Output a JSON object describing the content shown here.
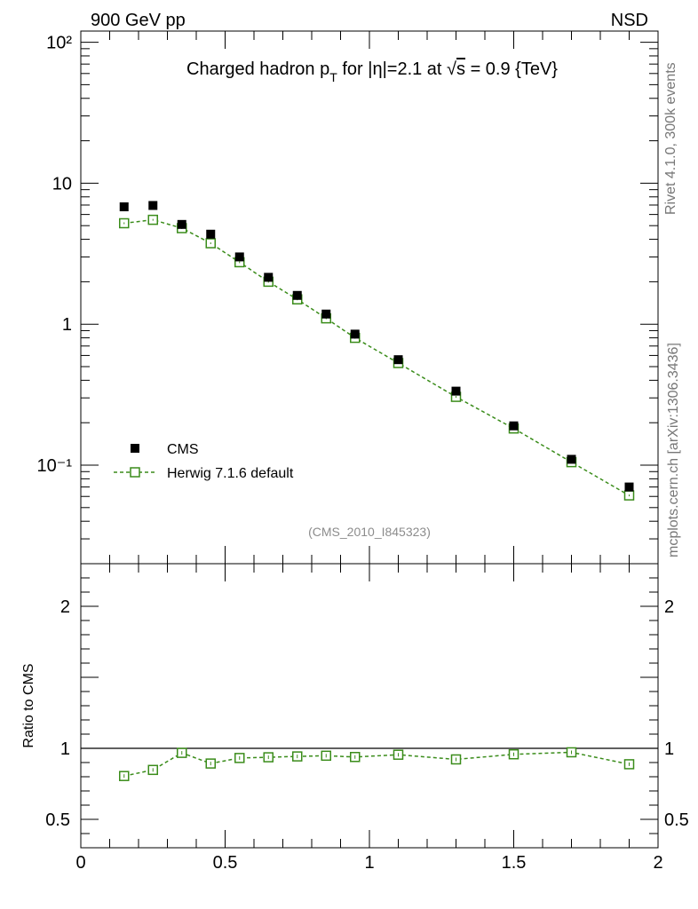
{
  "header": {
    "left": "900 GeV pp",
    "right": "NSD"
  },
  "side": {
    "rivet": "Rivet 4.1.0,  300k events",
    "mcplots": "mcplots.cern.ch [arXiv:1306.3436]"
  },
  "title": {
    "part1": "Charged hadron p",
    "sub": "T",
    "part2": " for |η|=2.1 at √",
    "s": "s",
    "part3": " = 0.9 {TeV}"
  },
  "analysis_id": "(CMS_2010_I845323)",
  "legend": {
    "data_label": "CMS",
    "mc_label": "Herwig 7.1.6 default"
  },
  "colors": {
    "data": "#000000",
    "mc": "#3a8c1a",
    "axis": "#000000"
  },
  "chart_data": [
    {
      "type": "scatter",
      "panel": "main",
      "yscale": "log",
      "xlim": [
        0,
        2
      ],
      "ylim": [
        0.02,
        120
      ],
      "ytick_labels": [
        "10⁻¹",
        "1",
        "10",
        "10²"
      ],
      "series": [
        {
          "name": "CMS",
          "x": [
            0.15,
            0.25,
            0.35,
            0.45,
            0.55,
            0.65,
            0.75,
            0.85,
            0.95,
            1.1,
            1.3,
            1.5,
            1.7,
            1.9
          ],
          "values": [
            6.8,
            6.95,
            5.1,
            4.35,
            3.0,
            2.15,
            1.6,
            1.18,
            0.85,
            0.56,
            0.335,
            0.19,
            0.11,
            0.07
          ]
        },
        {
          "name": "Herwig 7.1.6 default",
          "x": [
            0.15,
            0.25,
            0.35,
            0.45,
            0.55,
            0.65,
            0.75,
            0.85,
            0.95,
            1.1,
            1.3,
            1.5,
            1.7,
            1.9
          ],
          "values": [
            5.2,
            5.5,
            4.8,
            3.75,
            2.75,
            2.0,
            1.5,
            1.1,
            0.8,
            0.53,
            0.305,
            0.182,
            0.105,
            0.061
          ]
        }
      ]
    },
    {
      "type": "line",
      "panel": "ratio",
      "ylabel": "Ratio to CMS",
      "xlim": [
        0,
        2
      ],
      "ylim": [
        0.3,
        2.3
      ],
      "ytick_labels": [
        "0.5",
        "1",
        "2"
      ],
      "xtick_labels": [
        "0",
        "0.5",
        "1",
        "1.5",
        "2"
      ],
      "reference_line": 1,
      "series": [
        {
          "name": "Herwig 7.1.6 default / CMS",
          "x": [
            0.15,
            0.25,
            0.35,
            0.45,
            0.55,
            0.65,
            0.75,
            0.85,
            0.95,
            1.1,
            1.3,
            1.5,
            1.7,
            1.9
          ],
          "values": [
            0.805,
            0.848,
            0.968,
            0.893,
            0.932,
            0.937,
            0.943,
            0.948,
            0.939,
            0.955,
            0.922,
            0.958,
            0.972,
            0.888
          ]
        }
      ]
    }
  ]
}
